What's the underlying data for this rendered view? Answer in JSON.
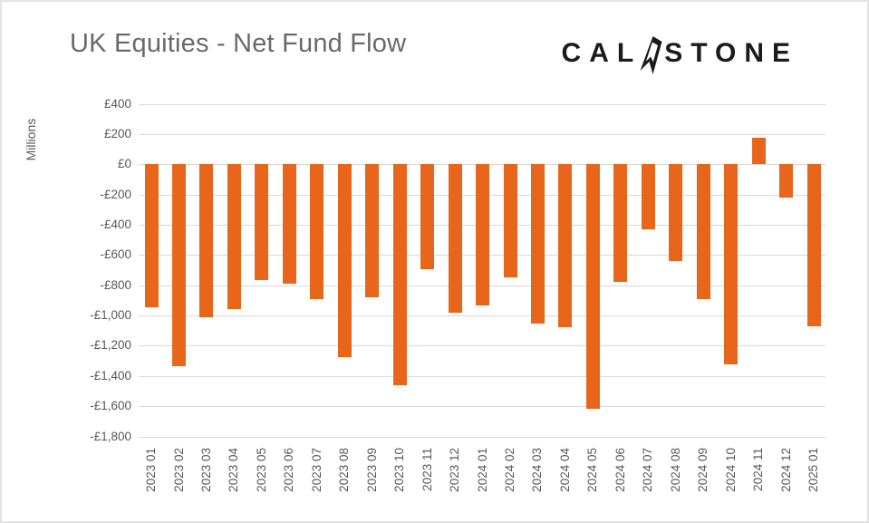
{
  "title": "UK Equities - Net Fund Flow",
  "logo": {
    "name": "Calastone",
    "pre": "CAL",
    "post": "STONE"
  },
  "colors": {
    "bar": "#e8661c",
    "grid": "#d9d9d9",
    "axis_text": "#595959",
    "title_text": "#6a6a6a",
    "logo_text": "#1b1b1b"
  },
  "chart_data": {
    "type": "bar",
    "title": "UK Equities - Net Fund Flow",
    "xlabel": "",
    "ylabel": "Millions",
    "unit": "£ million",
    "ylim": [
      -1800,
      400
    ],
    "ytick_step": 200,
    "grid": true,
    "legend": "none",
    "ytick_values": [
      400,
      200,
      0,
      -200,
      -400,
      -600,
      -800,
      -1000,
      -1200,
      -1400,
      -1600,
      -1800
    ],
    "ytick_labels": [
      "£400",
      "£200",
      "£0",
      "-£200",
      "-£400",
      "-£600",
      "-£800",
      "-£1,000",
      "-£1,200",
      "-£1,400",
      "-£1,600",
      "-£1,800"
    ],
    "categories": [
      "2023 01",
      "2023 02",
      "2023 03",
      "2023 04",
      "2023 05",
      "2023 06",
      "2023 07",
      "2023 08",
      "2023 09",
      "2023 10",
      "2023 11",
      "2023 12",
      "2024 01",
      "2024 02",
      "2024 03",
      "2024 04",
      "2024 05",
      "2024 06",
      "2024 07",
      "2024 08",
      "2024 09",
      "2024 10",
      "2024 11",
      "2024 12",
      "2025 01"
    ],
    "values": [
      -945,
      -1335,
      -1010,
      -960,
      -765,
      -790,
      -895,
      -1275,
      -880,
      -1460,
      -695,
      -985,
      -935,
      -750,
      -1055,
      -1075,
      -1620,
      -780,
      -430,
      -640,
      -895,
      -1325,
      175,
      -220,
      -1070
    ]
  }
}
